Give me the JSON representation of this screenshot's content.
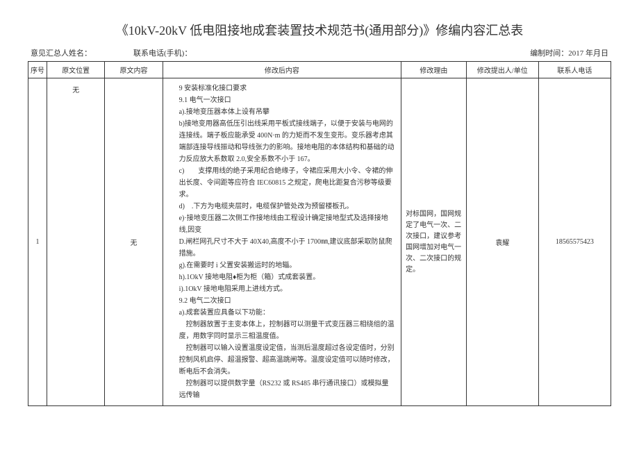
{
  "title": "《10kV-20kV 低电阻接地成套装置技术规范书(通用部分)》修编内容汇总表",
  "meta": {
    "name_label": "意见汇总人姓名：",
    "phone_label": "联系电话(手机)：",
    "date_label": "编制时间：",
    "date_value": "2017 年月日"
  },
  "headers": {
    "seq": "序号",
    "pos": "原文位置",
    "orig": "原文内容",
    "mod": "修改后内容",
    "reason": "修改理由",
    "who": "修改提出人/单位",
    "phone": "联系人电话"
  },
  "row": {
    "seq": "1",
    "pos": "无",
    "orig": "无",
    "mod_lines": [
      "9 安装标准化接口要求",
      "9.1 电气一次接口",
      "a).接地变压器本体上设有吊攀",
      "b)接地变用器高低压引出线采用平板式接线端子，以便于安装与电网的连接线。端子板应能承受 400N·m 的力矩而不发生变形。变乐器考虑其端部连接导线振动和导线张力的影响。接地电阻的本体结构和基础的动力反应放大系数取 2.0,安全系数不小于 167。",
      "c)　　支撑用线的绝子采用纪合绝缘子，令裙应采用大小令、令裙的伸出长度、令间距等应符合 IEC60815 之规定，爬电比距复合污秽等级要求。",
      "d)　.下方为电缆夹层时，电缆保护管处改为预留楼板孔。",
      "e)·接地变压器二次侧工作接地线由工程设计确定接地型式及选择接地线,因变",
      "D.闸栏网孔尺寸不大于 40X40,高度不小于 1700㎜,建议底部采取防鼠爬措施。",
      "g).在需要时 i 父置安装搬运时的地辎。",
      "h).1OkV 接地电阻♦柜为柜（箱）式成套装置。",
      "i).1OkV 接地电阻采用上进线方式。",
      "9.2 电气二次接口",
      "a).成套装置应具备以下功能：",
      "　控制器放置于主变本体上，控制器可以测量干式变压器三相绕组的温度，用数字同时显示三相温度值。",
      "　控制器可以输入设置温度设定值，当测后温度超过各设定值时，分别控制风机启停、超温报警、超高温跳闸等。温度设定值可以随时修改，断电后不会消失。",
      "　控制器可以提供数字量（RS232 或 RS485 串行通讯接口）或模拟量远传输"
    ],
    "reason": "对标国网，国网规定了电气一次、二次接口，建议参考国网增加对电气一次、二次接口的规定。",
    "who": "袁耀",
    "phone": "18565575423"
  }
}
